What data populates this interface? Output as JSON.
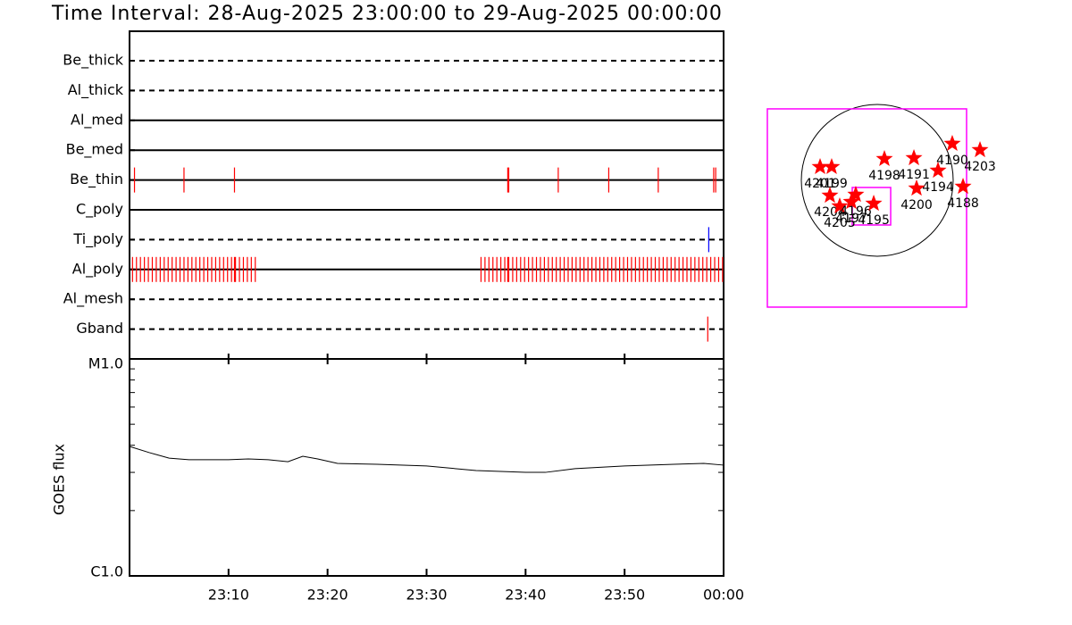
{
  "chart_data": [
    {
      "type": "timeline",
      "title": "Time Interval: 28-Aug-2025 23:00:00 to 29-Aug-2025 00:00:00",
      "xlim": [
        0,
        60
      ],
      "series": [
        {
          "name": "Be_thick",
          "style": "dashed",
          "color": "#ff0000",
          "values": []
        },
        {
          "name": "Al_thick",
          "style": "dashed",
          "color": "#ff0000",
          "values": []
        },
        {
          "name": "Al_med",
          "style": "solid",
          "color": "#ff0000",
          "values": []
        },
        {
          "name": "Be_med",
          "style": "solid",
          "color": "#ff0000",
          "values": []
        },
        {
          "name": "Be_thin",
          "style": "solid",
          "color": "#ff0000",
          "values": [
            0.5,
            5.5,
            10.6,
            38.2,
            38.3,
            43.3,
            48.4,
            53.4,
            59.0,
            59.2
          ]
        },
        {
          "name": "C_poly",
          "style": "solid",
          "color": "#ff0000",
          "values": []
        },
        {
          "name": "Ti_poly",
          "style": "dashed",
          "color": "#0000ff",
          "values": [
            58.5
          ]
        },
        {
          "name": "Al_poly",
          "style": "solid",
          "color": "#ff0000",
          "values": [
            0.3,
            0.7,
            1.1,
            1.5,
            1.9,
            2.3,
            2.7,
            3.1,
            3.5,
            3.9,
            4.3,
            4.7,
            5.1,
            5.5,
            5.9,
            6.3,
            6.7,
            7.1,
            7.5,
            7.9,
            8.3,
            8.7,
            9.1,
            9.5,
            9.9,
            10.3,
            10.6,
            10.7,
            11.1,
            11.5,
            11.9,
            12.3,
            12.7,
            35.5,
            35.9,
            36.3,
            36.7,
            37.1,
            37.5,
            37.9,
            38.2,
            38.3,
            38.7,
            39.1,
            39.5,
            39.9,
            40.3,
            40.7,
            41.1,
            41.5,
            41.9,
            42.3,
            42.7,
            43.1,
            43.5,
            43.9,
            44.3,
            44.7,
            45.1,
            45.5,
            45.9,
            46.3,
            46.7,
            47.1,
            47.5,
            47.9,
            48.3,
            48.7,
            49.1,
            49.5,
            49.9,
            50.3,
            50.7,
            51.1,
            51.5,
            51.9,
            52.3,
            52.7,
            53.1,
            53.5,
            53.9,
            54.3,
            54.7,
            55.1,
            55.5,
            55.9,
            56.3,
            56.7,
            57.1,
            57.5,
            57.9,
            58.3,
            58.7,
            59.1,
            59.5,
            59.9
          ]
        },
        {
          "name": "Al_mesh",
          "style": "dashed",
          "color": "#ff0000",
          "values": []
        },
        {
          "name": "Gband",
          "style": "dashed",
          "color": "#ff0000",
          "values": [
            58.4
          ]
        }
      ]
    },
    {
      "type": "line",
      "ylabel": "GOES flux",
      "log_scale": true,
      "color": "#000000",
      "x": [
        0,
        2,
        4,
        6,
        10,
        12,
        14,
        16,
        17.5,
        19,
        21,
        25,
        30,
        35,
        40,
        42,
        45,
        50,
        55,
        58,
        60
      ],
      "values": [
        3.95e-06,
        3.7e-06,
        3.49e-06,
        3.43e-06,
        3.43e-06,
        3.46e-06,
        3.43e-06,
        3.36e-06,
        3.56e-06,
        3.46e-06,
        3.3e-06,
        3.27e-06,
        3.21e-06,
        3.06e-06,
        3e-06,
        3e-06,
        3.12e-06,
        3.21e-06,
        3.27e-06,
        3.3e-06,
        3.24e-06
      ],
      "xlim": [
        0,
        60
      ],
      "xticks": [
        {
          "value": 10,
          "label": "23:10"
        },
        {
          "value": 20,
          "label": "23:20"
        },
        {
          "value": 30,
          "label": "23:30"
        },
        {
          "value": 40,
          "label": "23:40"
        },
        {
          "value": 50,
          "label": "23:50"
        },
        {
          "value": 60,
          "label": "00:00"
        }
      ],
      "ylim": [
        1e-06,
        1e-05
      ],
      "yticks": [
        {
          "value": 1e-05,
          "label": "M1.0"
        },
        {
          "value": 1e-06,
          "label": "C1.0"
        }
      ],
      "yminorticks": [
        2e-06,
        3e-06,
        4e-06,
        5e-06,
        6e-06,
        7e-06,
        8e-06,
        9e-06
      ]
    },
    {
      "type": "scatter",
      "color": "#ff0000",
      "box_color": "#ff00ff",
      "labels": [
        "4201",
        "4199",
        "4204",
        "4205",
        "4196",
        "4197",
        "4195",
        "4198",
        "4191",
        "4190",
        "4203",
        "4194",
        "4200",
        "4188"
      ],
      "x": [
        -711,
        -567,
        -589,
        -467,
        -267,
        -322,
        -44,
        89,
        456,
        933,
        1278,
        756,
        489,
        1067
      ],
      "y": [
        167,
        167,
        -189,
        -322,
        -178,
        -267,
        -289,
        267,
        278,
        456,
        378,
        122,
        -100,
        -78
      ],
      "boxes": [
        [
          -128,
          -344,
          2478,
          2467
        ],
        [
          -72,
          -322,
          478,
          467
        ]
      ]
    }
  ]
}
